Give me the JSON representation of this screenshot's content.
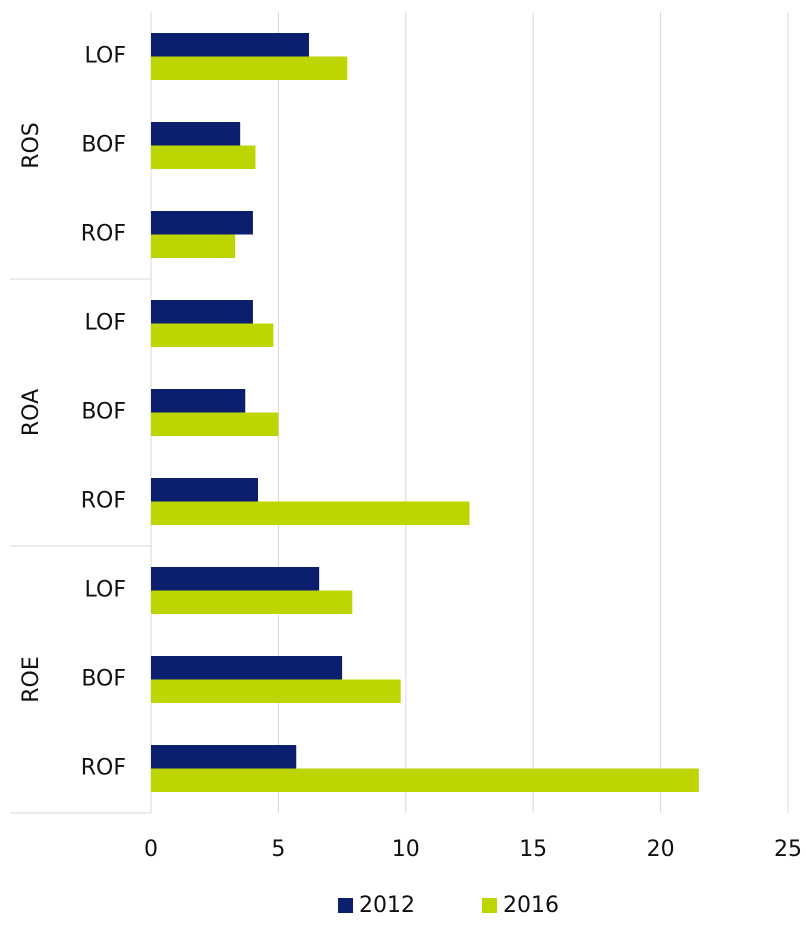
{
  "chart_data": {
    "type": "bar",
    "orientation": "horizontal",
    "groups": [
      "ROS",
      "ROA",
      "ROE"
    ],
    "categories": [
      "LOF",
      "BOF",
      "ROF",
      "LOF",
      "BOF",
      "ROF",
      "LOF",
      "BOF",
      "ROF"
    ],
    "series": [
      {
        "name": "2012",
        "color": "#0b1f6e",
        "values": [
          6.2,
          3.5,
          4.0,
          4.0,
          3.7,
          4.2,
          6.6,
          7.5,
          5.7
        ]
      },
      {
        "name": "2016",
        "color": "#bdd500",
        "values": [
          7.7,
          4.1,
          3.3,
          4.8,
          5.0,
          12.5,
          7.9,
          9.8,
          21.5
        ]
      }
    ],
    "xlim": [
      0,
      25
    ],
    "xticks": [
      0,
      5,
      10,
      15,
      20,
      25
    ],
    "grid": true,
    "legend": "bottom"
  }
}
